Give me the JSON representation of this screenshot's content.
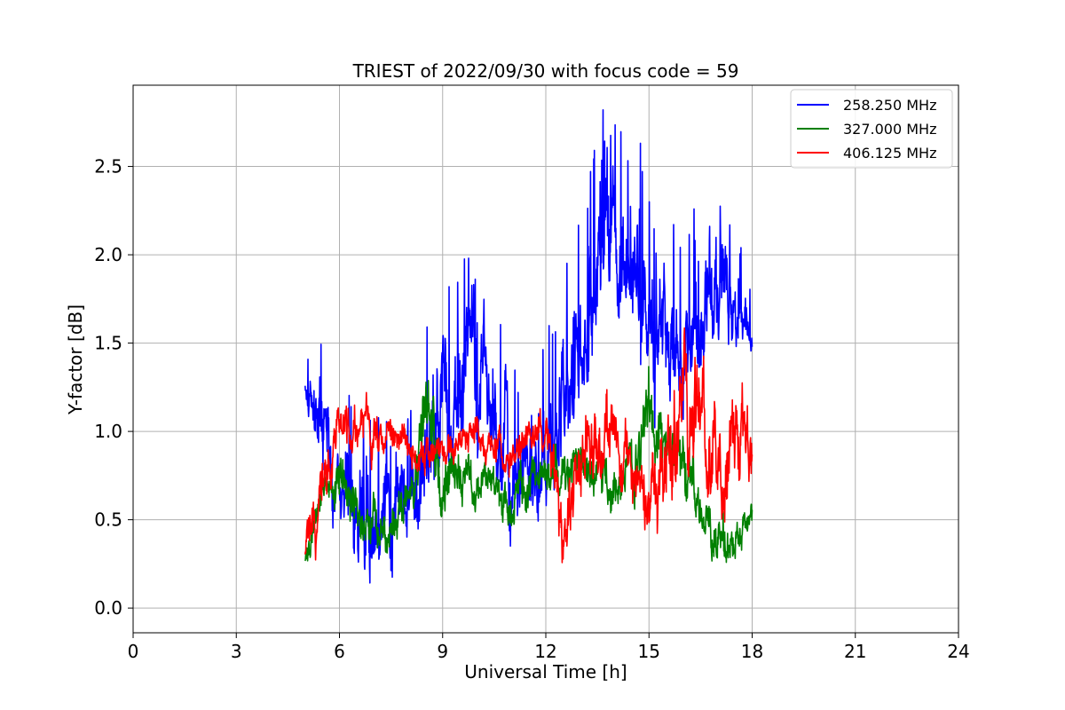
{
  "chart_data": {
    "type": "line",
    "title": "TRIEST of 2022/09/30 with focus code = 59",
    "xlabel": "Universal Time [h]",
    "ylabel": "Y-factor [dB]",
    "xlim": [
      0,
      24
    ],
    "ylim": [
      -0.14,
      2.96
    ],
    "xticks": [
      0,
      3,
      6,
      9,
      12,
      15,
      18,
      21,
      24
    ],
    "yticks": [
      0.0,
      0.5,
      1.0,
      1.5,
      2.0,
      2.5
    ],
    "ytick_labels": [
      "0.0",
      "0.5",
      "1.0",
      "1.5",
      "2.0",
      "2.5"
    ],
    "grid": true,
    "legend_position": "upper-right",
    "x": [
      5.0,
      5.5,
      6.0,
      6.5,
      7.0,
      7.5,
      8.0,
      8.5,
      9.0,
      9.5,
      10.0,
      10.5,
      11.0,
      11.5,
      12.0,
      12.5,
      13.0,
      13.5,
      14.0,
      14.5,
      15.0,
      15.5,
      16.0,
      16.5,
      17.0,
      17.5,
      18.0
    ],
    "series": [
      {
        "name": "258.250 MHz",
        "color": "#0000ff",
        "values": [
          1.3,
          1.0,
          0.65,
          0.55,
          0.45,
          0.5,
          0.7,
          0.9,
          1.05,
          1.2,
          1.25,
          1.05,
          0.8,
          0.75,
          0.85,
          1.15,
          1.4,
          1.85,
          2.0,
          1.9,
          1.75,
          1.55,
          1.45,
          1.65,
          1.75,
          1.7,
          1.5
        ],
        "spread": [
          0.12,
          0.45,
          0.35,
          0.5,
          0.4,
          0.5,
          0.45,
          0.55,
          0.55,
          0.7,
          0.6,
          0.55,
          0.45,
          0.4,
          0.45,
          0.55,
          0.55,
          0.65,
          0.6,
          0.55,
          0.55,
          0.5,
          0.45,
          0.5,
          0.5,
          0.35,
          0.2
        ]
      },
      {
        "name": "327.000 MHz",
        "color": "#008000",
        "values": [
          0.3,
          0.6,
          0.75,
          0.55,
          0.45,
          0.5,
          0.55,
          1.0,
          0.8,
          0.75,
          0.7,
          0.65,
          0.6,
          0.7,
          0.75,
          0.8,
          0.75,
          0.75,
          0.7,
          0.75,
          1.1,
          0.95,
          0.8,
          0.5,
          0.35,
          0.45,
          0.5
        ],
        "spread": [
          0.2,
          0.2,
          0.25,
          0.2,
          0.25,
          0.2,
          0.25,
          0.35,
          0.3,
          0.2,
          0.2,
          0.2,
          0.2,
          0.2,
          0.2,
          0.25,
          0.2,
          0.2,
          0.2,
          0.25,
          0.3,
          0.3,
          0.3,
          0.2,
          0.25,
          0.2,
          0.15
        ]
      },
      {
        "name": "406.125 MHz",
        "color": "#ff0000",
        "values": [
          0.3,
          0.65,
          1.0,
          1.05,
          1.0,
          0.95,
          0.9,
          0.85,
          0.85,
          0.95,
          1.0,
          0.9,
          0.9,
          1.0,
          1.05,
          0.3,
          0.85,
          1.1,
          1.0,
          0.75,
          0.6,
          0.85,
          1.1,
          1.2,
          0.6,
          1.0,
          0.9
        ],
        "spread": [
          0.2,
          0.3,
          0.2,
          0.2,
          0.2,
          0.15,
          0.15,
          0.15,
          0.15,
          0.15,
          0.15,
          0.15,
          0.15,
          0.15,
          0.2,
          0.3,
          0.35,
          0.35,
          0.3,
          0.3,
          0.25,
          0.4,
          0.5,
          0.45,
          0.35,
          0.4,
          0.35
        ]
      }
    ]
  }
}
